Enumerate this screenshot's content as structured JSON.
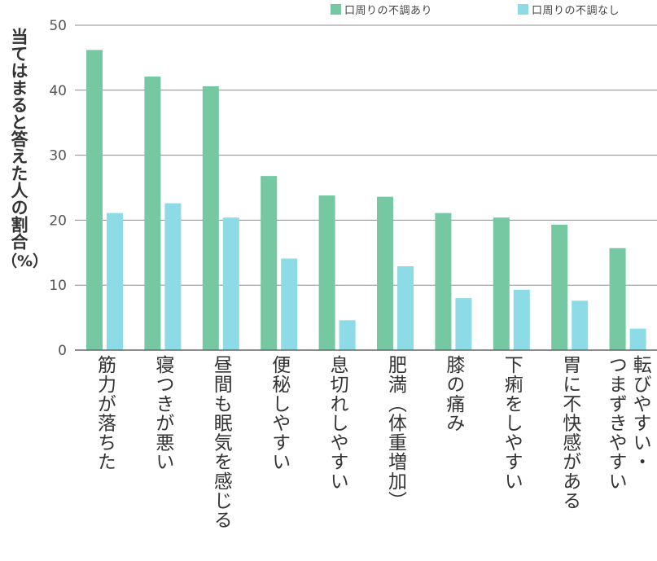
{
  "chart_data": {
    "type": "bar",
    "ylabel": "当てはまると答えた人の割合",
    "yunit": "（%）",
    "ylim": [
      0,
      50
    ],
    "yticks": [
      "0",
      "10",
      "20",
      "30",
      "40",
      "50"
    ],
    "grid": true,
    "legend_position": "top-right",
    "categories": [
      "筋力が落ちた",
      "寝つきが悪い",
      "昼間も眠気を感じる",
      "便秘しやすい",
      "息切れしやすい",
      "肥満（体重増加）",
      "膝の痛み",
      "下痢をしやすい",
      "胃に不快感がある",
      "転びやすい・つまずきやすい"
    ],
    "category_lines": [
      [
        "筋力が落ちた"
      ],
      [
        "寝つきが悪い"
      ],
      [
        "昼間も眠気を感じる"
      ],
      [
        "便秘しやすい"
      ],
      [
        "息切れしやすい"
      ],
      [
        "肥満（体重増加）"
      ],
      [
        "膝の痛み"
      ],
      [
        "下痢をしやすい"
      ],
      [
        "胃に不快感がある"
      ],
      [
        "転びやすい・",
        "つまずきやすい"
      ]
    ],
    "series": [
      {
        "name": "口周りの不調あり",
        "color": "#75c8a1",
        "values": [
          46.2,
          42.1,
          40.6,
          26.8,
          23.8,
          23.6,
          21.1,
          20.4,
          19.3,
          15.7
        ]
      },
      {
        "name": "口周りの不調なし",
        "color": "#8ddbe6",
        "values": [
          21.1,
          22.6,
          20.4,
          14.1,
          4.6,
          12.9,
          8.0,
          9.3,
          7.6,
          3.3
        ]
      }
    ]
  }
}
